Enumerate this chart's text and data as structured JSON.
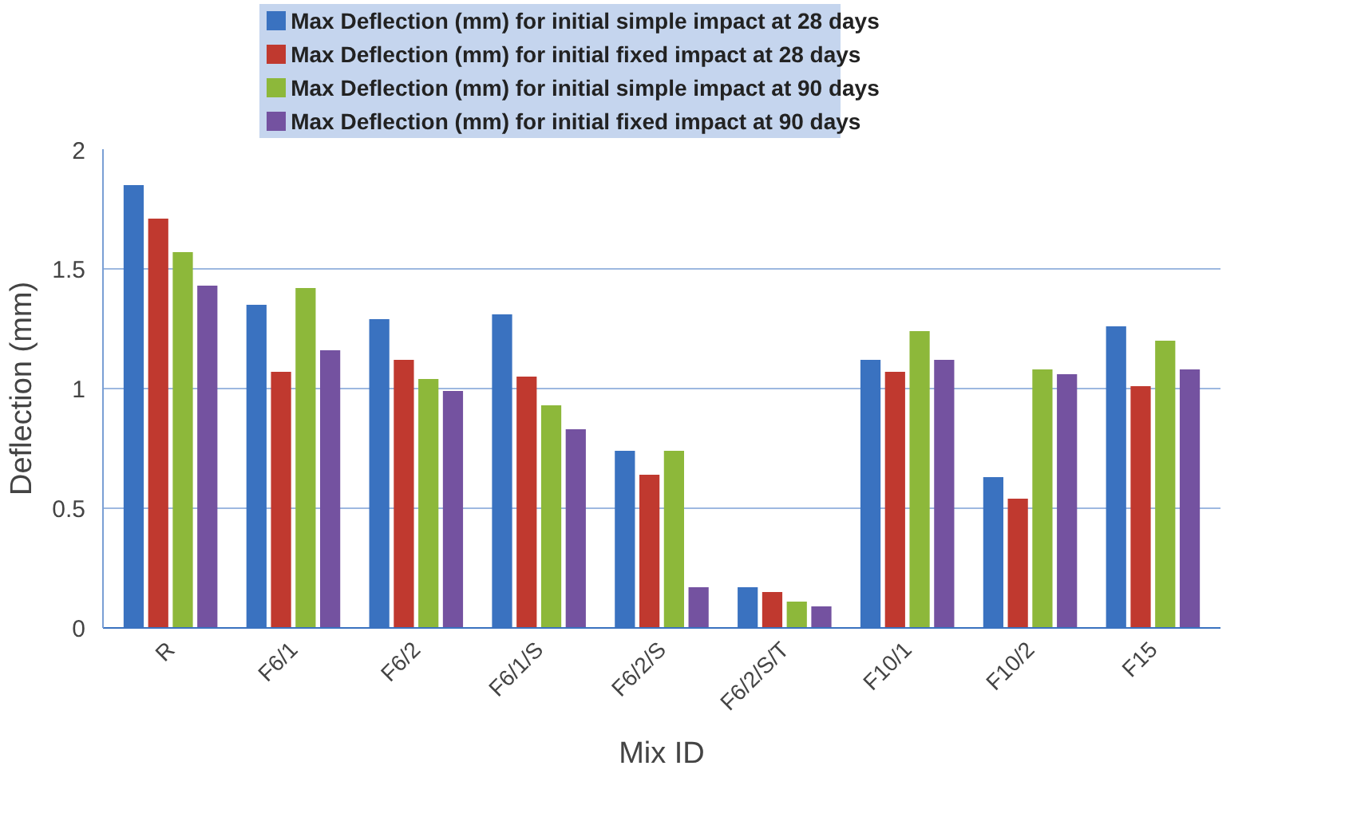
{
  "chart_data": {
    "type": "bar",
    "xlabel": "Mix ID",
    "ylabel": "Deflection (mm)",
    "categories": [
      "R",
      "F6/1",
      "F6/2",
      "F6/1/S",
      "F6/2/S",
      "F6/2/S/T",
      "F10/1",
      "F10/2",
      "F15"
    ],
    "series": [
      {
        "name": "Max Deflection (mm) for initial simple impact at 28 days",
        "color": "#3a72c0",
        "values": [
          1.85,
          1.35,
          1.29,
          1.31,
          0.74,
          0.17,
          1.12,
          0.63,
          1.26
        ]
      },
      {
        "name": "Max Deflection (mm) for initial fixed impact at 28 days",
        "color": "#c0392f",
        "values": [
          1.71,
          1.07,
          1.12,
          1.05,
          0.64,
          0.15,
          1.07,
          0.54,
          1.01
        ]
      },
      {
        "name": "Max Deflection (mm) for initial simple impact at 90 days",
        "color": "#8db83a",
        "values": [
          1.57,
          1.42,
          1.04,
          0.93,
          0.74,
          0.11,
          1.24,
          1.08,
          1.2
        ]
      },
      {
        "name": "Max Deflection (mm) for initial fixed impact at 90 days",
        "color": "#7452a0",
        "values": [
          1.43,
          1.16,
          0.99,
          0.83,
          0.17,
          0.09,
          1.12,
          1.06,
          1.08
        ]
      }
    ],
    "ylim": [
      0,
      2
    ],
    "yticks": [
      0,
      0.5,
      1,
      1.5,
      2
    ],
    "grid": "y",
    "legend": "top"
  }
}
